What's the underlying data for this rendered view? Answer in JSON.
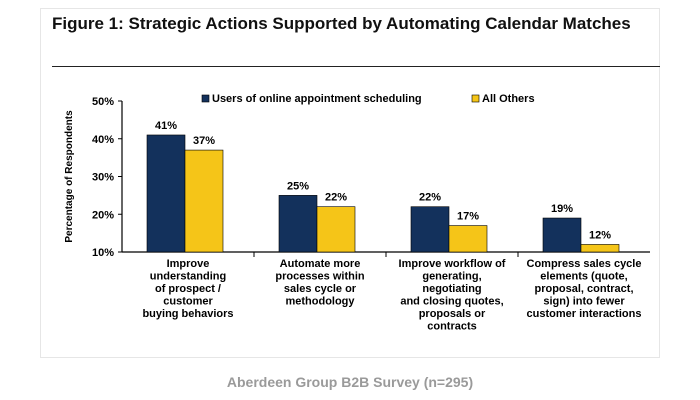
{
  "figure": {
    "title": "Figure 1: Strategic Actions Supported by Automating Calendar Matches"
  },
  "caption": "Aberdeen Group B2B Survey (n=295)",
  "colors": {
    "series1": "#13315c",
    "series2": "#f5c518"
  },
  "chart_data": {
    "type": "bar",
    "title": "Figure 1: Strategic Actions Supported by Automating Calendar Matches",
    "xlabel": "",
    "ylabel": "Percentage of Respondents",
    "ylim": [
      10,
      50
    ],
    "yticks": [
      "10%",
      "20%",
      "30%",
      "40%",
      "50%"
    ],
    "grid": false,
    "legend": "top",
    "categories": [
      [
        "Improve",
        "understanding",
        "of prospect /",
        "customer",
        "buying behaviors"
      ],
      [
        "Automate more",
        "processes within",
        "sales cycle or",
        "methodology"
      ],
      [
        "Improve workflow of",
        "generating,",
        "negotiating",
        "and closing quotes,",
        "proposals or",
        "contracts"
      ],
      [
        "Compress sales cycle",
        "elements (quote,",
        "proposal, contract,",
        "sign) into fewer",
        "customer interactions"
      ]
    ],
    "series": [
      {
        "name": "Users of online appointment scheduling",
        "values": [
          41,
          25,
          22,
          19
        ],
        "labels": [
          "41%",
          "25%",
          "22%",
          "19%"
        ]
      },
      {
        "name": "All Others",
        "values": [
          37,
          22,
          17,
          12
        ],
        "labels": [
          "37%",
          "22%",
          "17%",
          "12%"
        ]
      }
    ]
  }
}
